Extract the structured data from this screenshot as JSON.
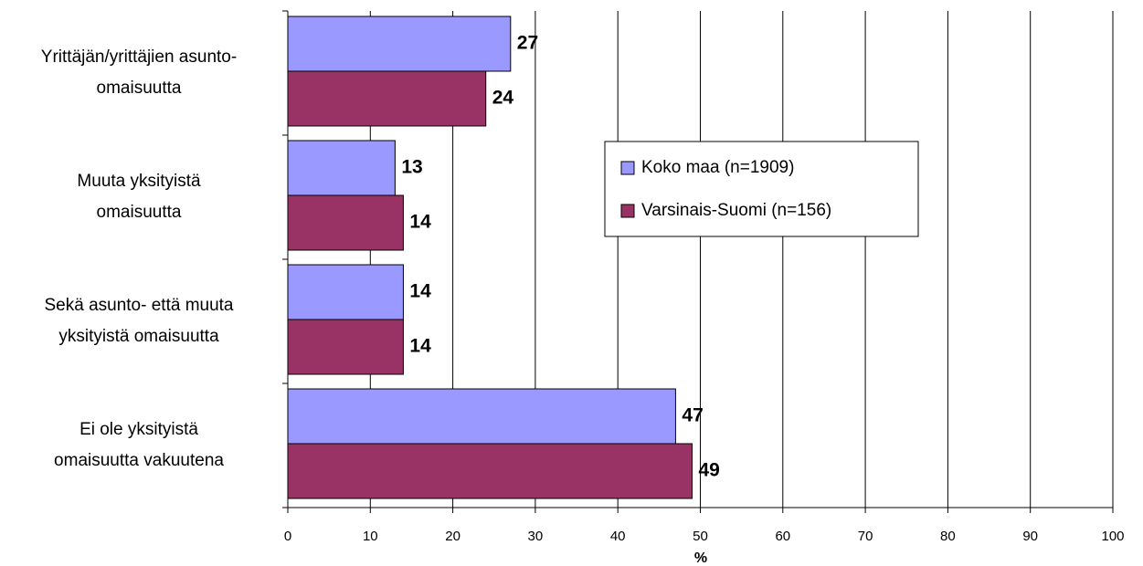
{
  "chart_data": {
    "type": "bar",
    "orientation": "horizontal",
    "categories": [
      "Yrittäjän/yrittäjien asunto-\nomaisuutta",
      "Muuta yksityistä\nomaisuutta",
      "Sekä asunto- että muuta\nyksityistä omaisuutta",
      "Ei ole yksityistä\nomaisuutta vakuutena"
    ],
    "series": [
      {
        "name": "Koko maa (n=1909)",
        "color": "#9999ff",
        "values": [
          27,
          13,
          14,
          47
        ]
      },
      {
        "name": "Varsinais-Suomi (n=156)",
        "color": "#993366",
        "values": [
          24,
          14,
          14,
          49
        ]
      }
    ],
    "xlabel": "%",
    "xlim": [
      0,
      100
    ],
    "xticks": [
      0,
      10,
      20,
      30,
      40,
      50,
      60,
      70,
      80,
      90,
      100
    ],
    "grid": true,
    "legend": "right"
  }
}
